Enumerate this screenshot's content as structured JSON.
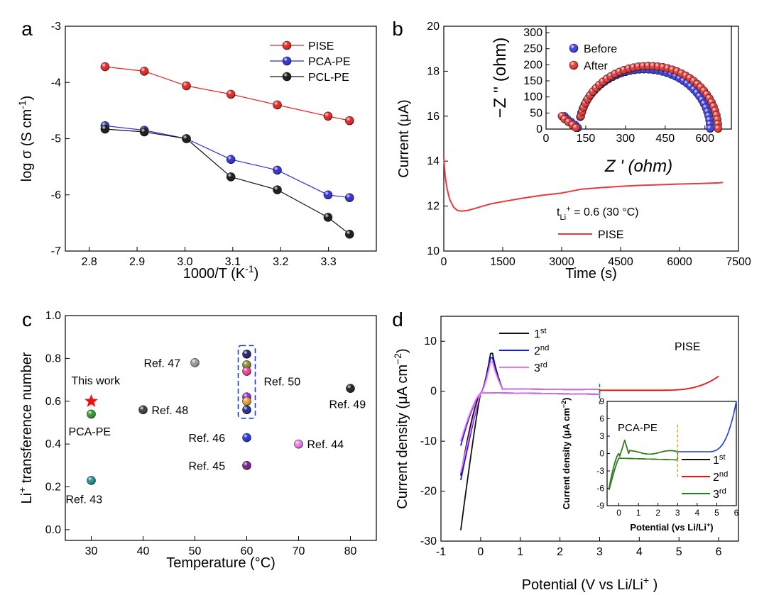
{
  "chart_data": [
    {
      "panel": "a",
      "type": "line",
      "xlabel": "1000/T (K",
      "xlabel_sup": "-1",
      "xlabel_tail": ")",
      "ylabel": "log σ (S cm",
      "ylabel_sup": "-1",
      "ylabel_tail": ")",
      "xlim": [
        2.75,
        3.4
      ],
      "ylim": [
        -7,
        -3
      ],
      "xticks": [
        "2.8",
        "2.9",
        "3.0",
        "3.1",
        "3.2",
        "3.3"
      ],
      "yticks": [
        "-3",
        "-4",
        "-5",
        "-6",
        "-7"
      ],
      "legend_position": "top-right",
      "x": [
        2.833,
        2.915,
        3.003,
        3.096,
        3.193,
        3.299,
        3.344
      ],
      "series": [
        {
          "name": "PISE",
          "color": "#e8201e",
          "values": [
            -3.72,
            -3.8,
            -4.06,
            -4.21,
            -4.4,
            -4.6,
            -4.68
          ]
        },
        {
          "name": "PCA-PE",
          "color": "#2b2bd6",
          "values": [
            -4.77,
            -4.85,
            -5.0,
            -5.37,
            -5.56,
            -6.0,
            -6.05
          ]
        },
        {
          "name": "PCL-PE",
          "color": "#111111",
          "values": [
            -4.83,
            -4.88,
            -5.0,
            -5.68,
            -5.91,
            -6.4,
            -6.7
          ]
        }
      ]
    },
    {
      "panel": "b",
      "type": "line",
      "xlabel": "Time (s)",
      "ylabel": "Current (",
      "ylabel_mu": "μ",
      "ylabel_tail": "A)",
      "xlim": [
        0,
        7500
      ],
      "ylim": [
        10,
        20
      ],
      "xticks": [
        "0",
        "1500",
        "3000",
        "4500",
        "6000",
        "7500"
      ],
      "yticks": [
        "10",
        "12",
        "14",
        "16",
        "18",
        "20"
      ],
      "annotation": "t",
      "annotation_sub": "Li",
      "annotation_sup": "+",
      "annotation_tail": " = 0.6 (30 °C)",
      "series": [
        {
          "name": "PISE",
          "color": "#e83a3a",
          "x": [
            0,
            30,
            80,
            150,
            250,
            350,
            450,
            600,
            800,
            1000,
            1200,
            1500,
            2000,
            2500,
            3000,
            3500,
            4000,
            4500,
            5000,
            5500,
            6000,
            6500,
            7000,
            7100
          ],
          "values": [
            14.2,
            13.4,
            12.8,
            12.3,
            11.95,
            11.8,
            11.78,
            11.8,
            11.9,
            12.0,
            12.1,
            12.2,
            12.35,
            12.48,
            12.58,
            12.75,
            12.82,
            12.88,
            12.92,
            12.95,
            12.98,
            13.0,
            13.03,
            13.05
          ]
        }
      ],
      "inset": {
        "xlabel": "Z ' (ohm)",
        "ylabel": "−Z '' (ohm)",
        "xlim": [
          0,
          700
        ],
        "ylim": [
          0,
          320
        ],
        "xticks": [
          "0",
          "150",
          "300",
          "450",
          "600"
        ],
        "yticks": [
          "0",
          "50",
          "100",
          "150",
          "200",
          "250",
          "300"
        ],
        "legend_position": "top-left",
        "series": [
          {
            "name": "Before",
            "color": "#3a3af0",
            "center": 372,
            "radius": 248,
            "tail_x": [
              70,
              80,
              95,
              110,
              120
            ]
          },
          {
            "name": "After",
            "color": "#ee3535",
            "center": 388,
            "radius": 262,
            "tail_x": [
              60,
              70,
              85,
              100,
              113
            ]
          }
        ]
      }
    },
    {
      "panel": "c",
      "type": "scatter",
      "xlabel": "Temperature (°C)",
      "ylabel": "Li",
      "ylabel_sup": "+",
      "ylabel_tail": " transference number",
      "xlim": [
        25,
        85
      ],
      "ylim": [
        -0.05,
        1.0
      ],
      "xticks": [
        "30",
        "40",
        "50",
        "60",
        "70",
        "80"
      ],
      "yticks": [
        "0.0",
        "0.2",
        "0.4",
        "0.6",
        "0.8",
        "1.0"
      ],
      "points": [
        {
          "label": "This work",
          "x": 30,
          "y": 0.6,
          "color": "#ee1111",
          "marker": "star"
        },
        {
          "label": "PCA-PE",
          "x": 30,
          "y": 0.54,
          "color": "#2a9a2a",
          "marker": "ball"
        },
        {
          "label": "Ref. 43",
          "x": 30,
          "y": 0.23,
          "color": "#1f8f8f",
          "marker": "ball"
        },
        {
          "label": "Ref. 48",
          "x": 40,
          "y": 0.56,
          "color": "#3a3a3a",
          "marker": "ball"
        },
        {
          "label": "Ref. 47",
          "x": 50,
          "y": 0.78,
          "color": "#9a9a9a",
          "marker": "ball"
        },
        {
          "label": "Ref. 46",
          "x": 60,
          "y": 0.43,
          "color": "#1f2fe0",
          "marker": "ball"
        },
        {
          "label": "Ref. 45",
          "x": 60,
          "y": 0.3,
          "color": "#7a1a8a",
          "marker": "ball"
        },
        {
          "label": "Ref. 44",
          "x": 70,
          "y": 0.4,
          "color": "#f07af0",
          "marker": "ball"
        },
        {
          "label": "Ref. 49",
          "x": 80,
          "y": 0.66,
          "color": "#1a1a1a",
          "marker": "ball"
        }
      ],
      "group": {
        "label": "Ref. 50",
        "x": 60,
        "values": [
          0.82,
          0.77,
          0.74,
          0.62,
          0.6,
          0.56
        ],
        "colors": [
          "#1a1a6a",
          "#8a8a2a",
          "#f03a9a",
          "#8a2ae0",
          "#f09a2a",
          "#1a2a8a"
        ]
      }
    },
    {
      "panel": "d",
      "type": "line",
      "xlabel": "Potential (V vs Li/Li",
      "xlabel_sup": "+",
      "xlabel_tail": " )",
      "ylabel": "Current density (",
      "ylabel_mu": "μ",
      "ylabel_mid": "A cm",
      "ylabel_sup": "−2",
      "ylabel_tail": ")",
      "xlim": [
        -1,
        6.5
      ],
      "ylim": [
        -30,
        15
      ],
      "xticks": [
        "-1",
        "0",
        "1",
        "2",
        "3",
        "4",
        "5",
        "6"
      ],
      "yticks": [
        "10",
        "0",
        "-10",
        "-20",
        "-30"
      ],
      "annotation": "PISE",
      "legend_position": "top-center",
      "series": [
        {
          "name": "1",
          "sup": "st",
          "color": "#111111"
        },
        {
          "name": "2",
          "sup": "nd",
          "color": "#1a1ae0"
        },
        {
          "name": "3",
          "sup": "rd",
          "color": "#f070f0"
        }
      ],
      "inset": {
        "xlabel": "Potential (vs Li/Li",
        "xlabel_sup": "+",
        "xlabel_tail": ")",
        "ylabel": "Current density (μA cm",
        "ylabel_sup": "−2",
        "ylabel_tail": ")",
        "annotation": "PCA-PE",
        "xlim": [
          -0.6,
          6
        ],
        "ylim": [
          -9,
          9
        ],
        "xticks": [
          "0",
          "1",
          "2",
          "3",
          "4",
          "5",
          "6"
        ],
        "yticks": [
          "9",
          "6",
          "3",
          "0",
          "-3",
          "-6",
          "-9"
        ],
        "series": [
          {
            "name": "1",
            "sup": "st",
            "color": "#111111"
          },
          {
            "name": "2",
            "sup": "nd",
            "color": "#ee1111"
          },
          {
            "name": "3",
            "sup": "rd",
            "color": "#1a8a1a"
          }
        ]
      }
    }
  ],
  "panel_labels": [
    "a",
    "b",
    "c",
    "d"
  ]
}
